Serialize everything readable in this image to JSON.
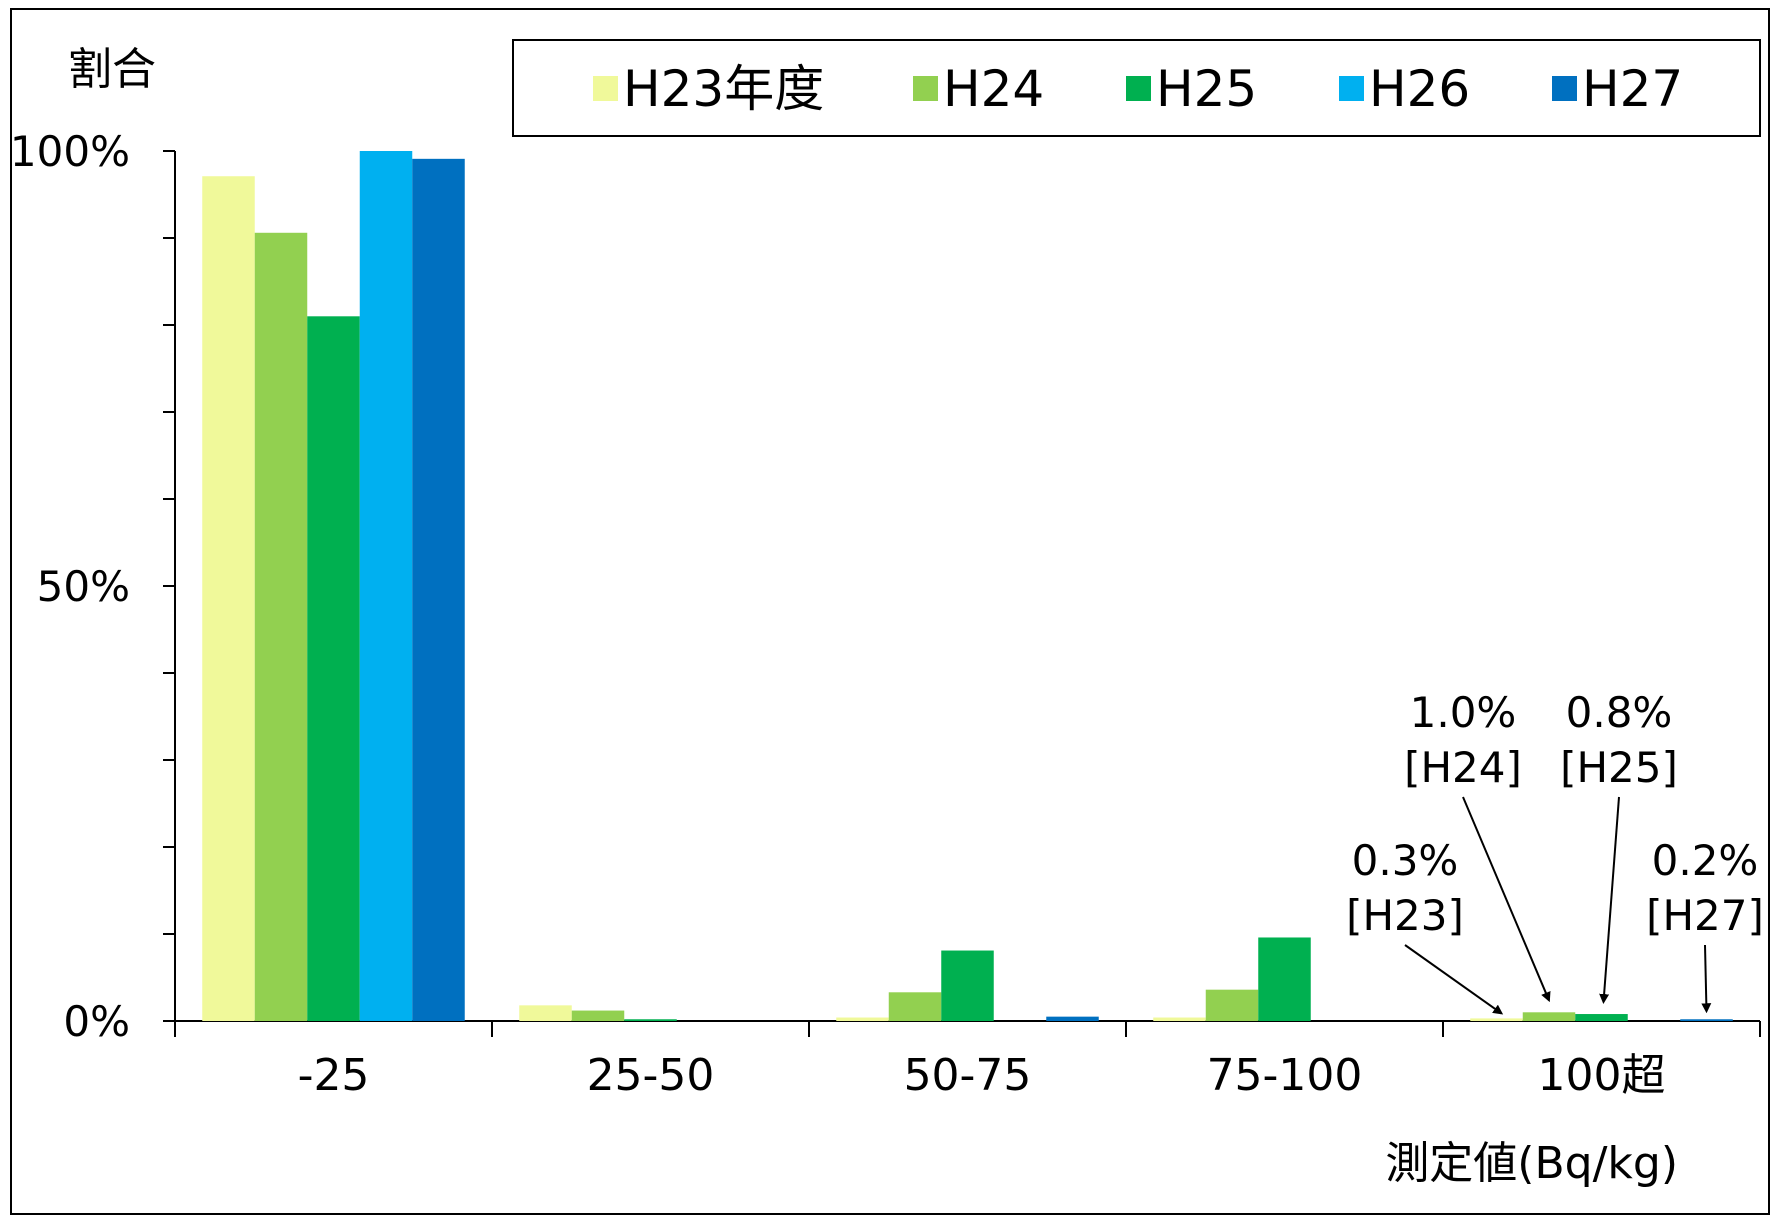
{
  "chart_data": {
    "type": "bar",
    "ylabel": "割合",
    "xlabel": "測定値(Bq/kg)",
    "ylim": [
      0,
      100
    ],
    "yticks": [
      {
        "value": 0,
        "label": "0%"
      },
      {
        "value": 50,
        "label": "50%"
      },
      {
        "value": 100,
        "label": "100%"
      }
    ],
    "categories": [
      "-25",
      "25-50",
      "50-75",
      "75-100",
      "100超"
    ],
    "series": [
      {
        "name": "H23年度",
        "color": "#f0f99a",
        "values": [
          97.1,
          1.8,
          0.4,
          0.4,
          0.3
        ]
      },
      {
        "name": "H24",
        "color": "#92d050",
        "values": [
          90.6,
          1.2,
          3.3,
          3.6,
          1.0
        ]
      },
      {
        "name": "H25",
        "color": "#00b050",
        "values": [
          81.0,
          0.2,
          8.1,
          9.6,
          0.8
        ]
      },
      {
        "name": "H26",
        "color": "#00b0f0",
        "values": [
          100.0,
          0.0,
          0.0,
          0.0,
          0.0
        ]
      },
      {
        "name": "H27",
        "color": "#0070c0",
        "values": [
          99.1,
          0.0,
          0.5,
          0.0,
          0.2
        ]
      }
    ],
    "annotations": [
      {
        "value": "0.3%",
        "series": "[H23]"
      },
      {
        "value": "1.0%",
        "series": "[H24]"
      },
      {
        "value": "0.8%",
        "series": "[H25]"
      },
      {
        "value": "0.2%",
        "series": "[H27]"
      }
    ],
    "grid": false,
    "legend_position": "top"
  }
}
